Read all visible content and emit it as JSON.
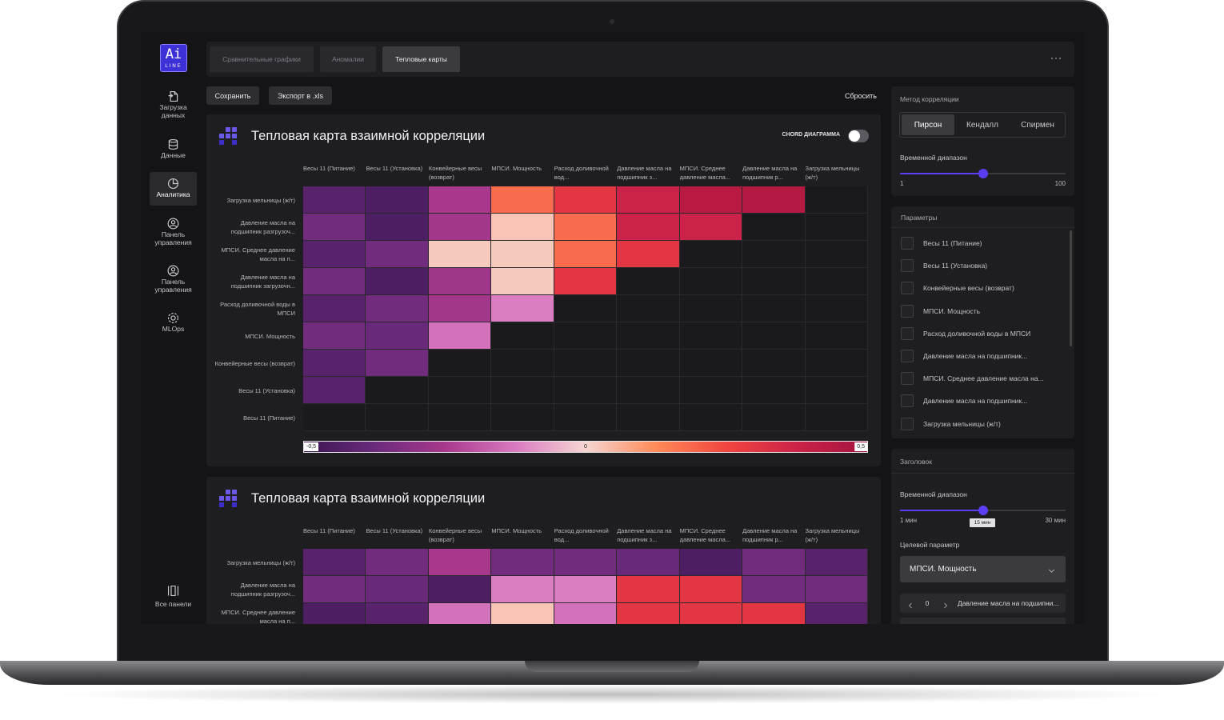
{
  "sidebar": {
    "logo": "Ai",
    "logo_sub": "LINE",
    "items": [
      "Загрузка данных",
      "Данные",
      "Аналитика",
      "Панель управления",
      "Панель управления",
      "MLOps"
    ],
    "active": 2,
    "footer": "Все панели"
  },
  "tabs": [
    "Сравнительные графики",
    "Аномалии",
    "Тепловые карты"
  ],
  "active_tab": 2,
  "toolbar": {
    "save": "Сохранить",
    "export": "Экспорт в .xls",
    "reset": "Сбросить"
  },
  "color_scale": {
    "zlim": [
      -0.5,
      0.5
    ],
    "ticks": [
      {
        "value": -0.5,
        "label": "-0,5"
      },
      0,
      {
        "value": 0.5,
        "label": "0,5"
      }
    ],
    "colors": [
      "#3a1650",
      "#6a2a7c",
      "#a8388c",
      "#d97ac0",
      "#f6d6d2",
      "#ff8a58",
      "#f0453f",
      "#cc2349",
      "#a3133c"
    ]
  },
  "heatmaps": [
    {
      "title": "Тепловая карта взаимной корреляции",
      "toggle_label": "CHORD ДИАГРАММА",
      "columns": [
        "Весы 11 (Питание)",
        "Весы 11 (Установка)",
        "Конвейерные весы (возврат)",
        "МПСИ. Мощность",
        "Расход доливочной вод...",
        "Давление масла на подшипник з...",
        "МПСИ. Среднее давление масла...",
        "Давление масла на подшипник р...",
        "Загрузка мельницы (ж/т)"
      ],
      "rows": [
        "Загрузка мельницы (ж/т)",
        "Давление масла на подшипник разгрузоч...",
        "МПСИ. Среднее давление масла на п...",
        "Давление масла на подшипник загрузочн...",
        "Расход доливочной воды в МПСИ",
        "МПСИ. Мощность",
        "Конвейерные весы (возврат)",
        "Весы 11 (Установка)",
        "Весы 11 (Питание)"
      ],
      "values": [
        [
          -0.42,
          -0.45,
          -0.25,
          0.18,
          0.3,
          0.38,
          0.44,
          0.45,
          null
        ],
        [
          -0.36,
          -0.45,
          -0.26,
          0.03,
          0.18,
          0.38,
          0.38,
          null,
          null
        ],
        [
          -0.42,
          -0.36,
          0.02,
          0.02,
          0.18,
          0.3,
          null,
          null,
          null
        ],
        [
          -0.36,
          -0.45,
          -0.27,
          0.02,
          0.3,
          null,
          null,
          null,
          null
        ],
        [
          -0.42,
          -0.36,
          -0.26,
          -0.12,
          null,
          null,
          null,
          null,
          null
        ],
        [
          -0.36,
          -0.38,
          -0.14,
          null,
          null,
          null,
          null,
          null,
          null
        ],
        [
          -0.42,
          -0.36,
          null,
          null,
          null,
          null,
          null,
          null,
          null
        ],
        [
          -0.42,
          null,
          null,
          null,
          null,
          null,
          null,
          null,
          null
        ],
        [
          null,
          null,
          null,
          null,
          null,
          null,
          null,
          null,
          null
        ]
      ]
    },
    {
      "title": "Тепловая карта взаимной корреляции",
      "columns": [
        "Весы 11 (Питание)",
        "Весы 11 (Установка)",
        "Конвейерные весы (возврат)",
        "МПСИ. Мощность",
        "Расход доливочной вод...",
        "Давление масла на подшипник з...",
        "МПСИ. Среднее давление масла...",
        "Давление масла на подшипник р...",
        "Загрузка мельницы (ж/т)"
      ],
      "rows": [
        "Загрузка мельницы (ж/т)",
        "Давление масла на подшипник разгрузоч...",
        "МПСИ. Среднее давление масла на п..."
      ],
      "values": [
        [
          -0.42,
          -0.36,
          -0.25,
          -0.36,
          -0.36,
          -0.38,
          -0.45,
          -0.36,
          -0.42
        ],
        [
          -0.36,
          -0.38,
          -0.45,
          -0.12,
          -0.12,
          0.3,
          0.3,
          -0.36,
          -0.36
        ],
        [
          -0.45,
          -0.42,
          -0.14,
          0.03,
          -0.14,
          0.3,
          0.3,
          0.3,
          -0.42
        ]
      ]
    }
  ],
  "correlation": {
    "title": "Метод корреляции",
    "methods": [
      "Пирсон",
      "Кендалл",
      "Спирмен"
    ],
    "active": 0,
    "range_label": "Временной диапазон",
    "range_min": 1,
    "range_max": 100
  },
  "parameters": {
    "title": "Параметры",
    "items": [
      "Весы 11 (Питание)",
      "Весы 11 (Установка)",
      "Конвейерные весы (возврат)",
      "МПСИ. Мощность",
      "Расход доливочной воды в МПСИ",
      "Давление масла на подшипник...",
      "МПСИ. Среднее давление масла на...",
      "Давление масла на подшипник...",
      "Загрузка мельницы (ж/т)"
    ]
  },
  "header_panel": {
    "title": "Заголовок",
    "range_label": "Временной диапазон",
    "range_min": "1 мин",
    "range_value": "15 мин",
    "range_max": "30 мин",
    "target_label": "Целевой параметр",
    "target": "МПСИ. Мощность",
    "lag": 0,
    "lag_param": "Давление масла на подшипни..."
  }
}
